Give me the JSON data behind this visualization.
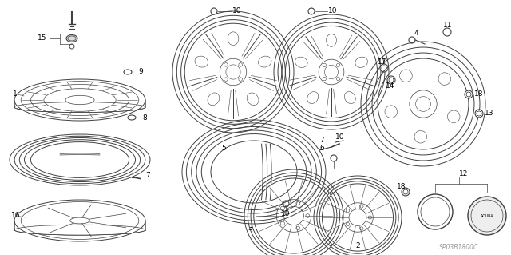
{
  "background_color": "#ffffff",
  "line_color": "#404040",
  "font_size": 6.5,
  "watermark": "SP03B1800C",
  "fig_w": 6.4,
  "fig_h": 3.19,
  "dpi": 100
}
